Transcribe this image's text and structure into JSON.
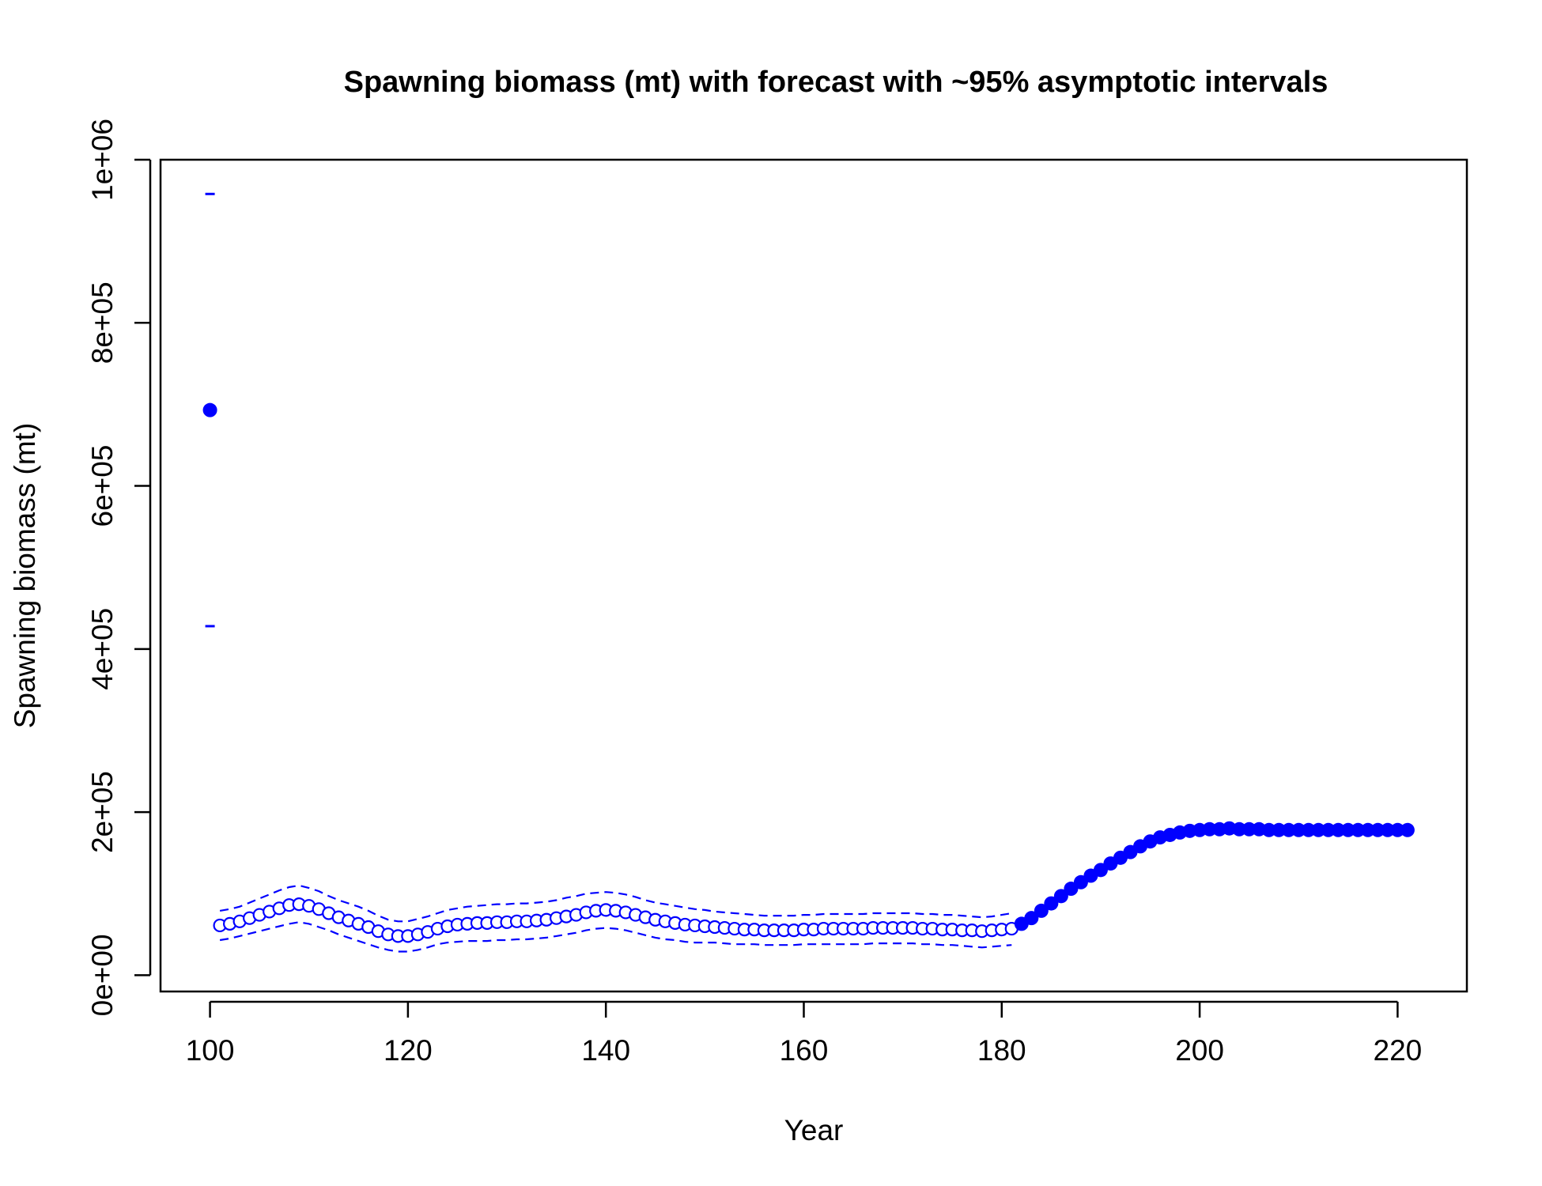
{
  "chart_data": {
    "type": "scatter",
    "title": "Spawning biomass (mt) with forecast with ~95% asymptotic intervals",
    "xlabel": "Year",
    "ylabel": "Spawning biomass (mt)",
    "xlim": [
      95,
      227
    ],
    "ylim": [
      -20000,
      1000000
    ],
    "x_ticks": [
      100,
      120,
      140,
      160,
      180,
      200,
      220
    ],
    "x_tick_labels": [
      "100",
      "120",
      "140",
      "160",
      "180",
      "200",
      "220"
    ],
    "y_ticks": [
      0,
      200000,
      400000,
      600000,
      800000,
      1000000
    ],
    "y_tick_labels": [
      "0e+00",
      "2e+05",
      "4e+05",
      "6e+05",
      "8e+05",
      "1e+06"
    ],
    "grid": false,
    "legend": "none",
    "colors": {
      "series": "#0000ff",
      "frame": "#000000"
    },
    "series": [
      {
        "role": "virgin",
        "marker": "filled-circle",
        "x": [
          100
        ],
        "values": [
          693000
        ],
        "lower": [
          428000
        ],
        "upper": [
          958000
        ]
      },
      {
        "role": "historical",
        "marker": "open-circle",
        "x": [
          101,
          102,
          103,
          104,
          105,
          106,
          107,
          108,
          109,
          110,
          111,
          112,
          113,
          114,
          115,
          116,
          117,
          118,
          119,
          120,
          121,
          122,
          123,
          124,
          125,
          126,
          127,
          128,
          129,
          130,
          131,
          132,
          133,
          134,
          135,
          136,
          137,
          138,
          139,
          140,
          141,
          142,
          143,
          144,
          145,
          146,
          147,
          148,
          149,
          150,
          151,
          152,
          153,
          154,
          155,
          156,
          157,
          158,
          159,
          160,
          161,
          162,
          163,
          164,
          165,
          166,
          167,
          168,
          169,
          170,
          171,
          172,
          173,
          174,
          175,
          176,
          177,
          178,
          179,
          180,
          181
        ],
        "values": [
          61000,
          63000,
          66000,
          70000,
          74000,
          78000,
          82000,
          86000,
          87000,
          85000,
          81000,
          76000,
          71000,
          67000,
          63000,
          59000,
          54000,
          50000,
          48000,
          48000,
          50000,
          53000,
          57000,
          60000,
          62000,
          63000,
          64000,
          64000,
          65000,
          65000,
          66000,
          66000,
          67000,
          68000,
          70000,
          72000,
          74000,
          77000,
          79000,
          80000,
          79000,
          77000,
          74000,
          71000,
          68000,
          66000,
          64000,
          62000,
          61000,
          60000,
          59000,
          58000,
          57000,
          56000,
          56000,
          55000,
          55000,
          55000,
          55000,
          56000,
          56000,
          57000,
          57000,
          57000,
          57000,
          57000,
          58000,
          58000,
          58000,
          58000,
          58000,
          57000,
          57000,
          56000,
          56000,
          55000,
          55000,
          54000,
          55000,
          56000,
          57000
        ],
        "lower": [
          43000,
          45000,
          48000,
          51000,
          54000,
          57000,
          60000,
          63000,
          65000,
          63000,
          59000,
          55000,
          50000,
          46000,
          42000,
          38000,
          34000,
          31000,
          29000,
          29000,
          31000,
          34000,
          38000,
          40000,
          41000,
          42000,
          42000,
          42000,
          43000,
          43000,
          44000,
          44000,
          45000,
          46000,
          48000,
          50000,
          52000,
          55000,
          57000,
          58000,
          57000,
          55000,
          52000,
          49000,
          46000,
          44000,
          43000,
          41000,
          40000,
          40000,
          40000,
          39000,
          38000,
          38000,
          38000,
          37000,
          37000,
          37000,
          37000,
          38000,
          38000,
          38000,
          38000,
          38000,
          38000,
          38000,
          39000,
          39000,
          39000,
          39000,
          39000,
          38000,
          38000,
          37000,
          37000,
          36000,
          35000,
          34000,
          35000,
          36000,
          37000
        ],
        "upper": [
          79000,
          81000,
          84000,
          89000,
          94000,
          99000,
          104000,
          108000,
          110000,
          107000,
          103000,
          97000,
          92000,
          88000,
          84000,
          79000,
          73000,
          68000,
          66000,
          66000,
          69000,
          72000,
          76000,
          80000,
          82000,
          84000,
          85000,
          86000,
          87000,
          87000,
          88000,
          88000,
          89000,
          90000,
          92000,
          95000,
          97000,
          100000,
          101000,
          102000,
          101000,
          99000,
          96000,
          92000,
          89000,
          87000,
          85000,
          83000,
          81000,
          80000,
          78000,
          77000,
          76000,
          75000,
          74000,
          73000,
          73000,
          73000,
          73000,
          74000,
          74000,
          75000,
          75000,
          75000,
          75000,
          75000,
          76000,
          76000,
          76000,
          76000,
          76000,
          75000,
          75000,
          74000,
          74000,
          73000,
          72000,
          71000,
          72000,
          74000,
          76000
        ]
      },
      {
        "role": "forecast",
        "marker": "filled-circle",
        "x": [
          182,
          183,
          184,
          185,
          186,
          187,
          188,
          189,
          190,
          191,
          192,
          193,
          194,
          195,
          196,
          197,
          198,
          199,
          200,
          201,
          202,
          203,
          204,
          205,
          206,
          207,
          208,
          209,
          210,
          211,
          212,
          213,
          214,
          215,
          216,
          217,
          218,
          219,
          220,
          221
        ],
        "values": [
          63000,
          70000,
          79000,
          88000,
          97000,
          106000,
          114000,
          122000,
          129000,
          137000,
          144000,
          151000,
          158000,
          164000,
          169000,
          172000,
          175000,
          177000,
          178000,
          179000,
          179000,
          180000,
          179000,
          179000,
          179000,
          178000,
          178000,
          178000,
          178000,
          178000,
          178000,
          178000,
          178000,
          178000,
          178000,
          178000,
          178000,
          178000,
          178000,
          178000
        ]
      }
    ]
  }
}
